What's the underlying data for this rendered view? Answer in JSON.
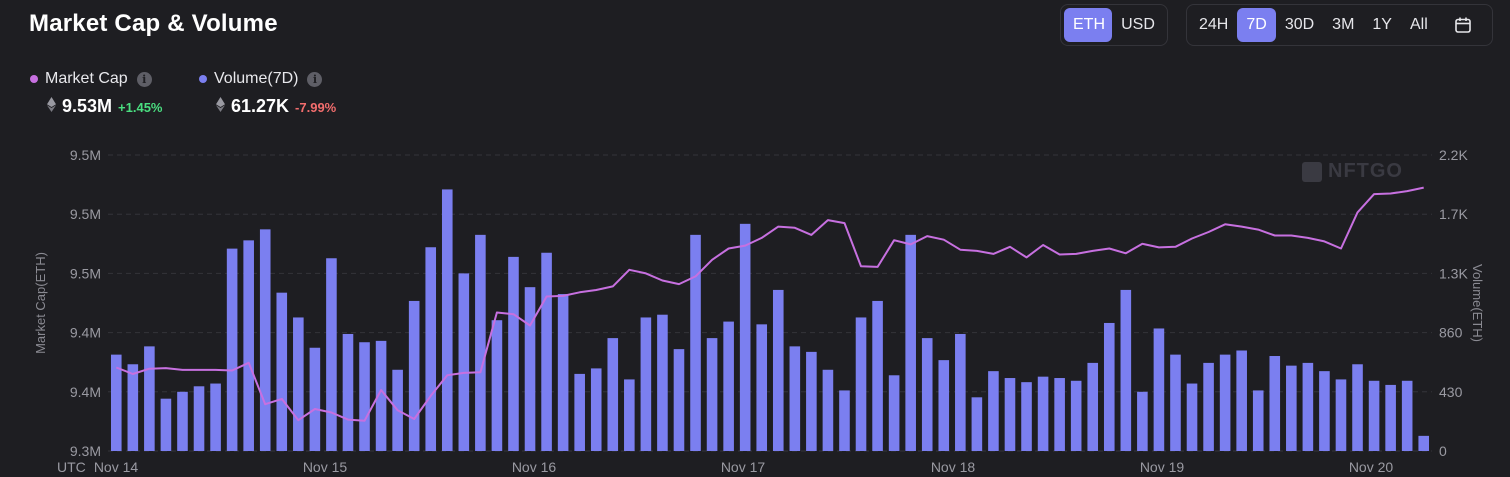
{
  "title": "Market Cap & Volume",
  "currency_toggle": {
    "options": [
      "ETH",
      "USD"
    ],
    "selected": "ETH"
  },
  "range_toggle": {
    "options": [
      "24H",
      "7D",
      "30D",
      "3M",
      "1Y",
      "All"
    ],
    "selected": "7D"
  },
  "legend": {
    "market_cap": {
      "label": "Market Cap",
      "value": "9.53M",
      "change": "+1.45%",
      "change_color": "#4ade80",
      "color": "#c770e0"
    },
    "volume": {
      "label": "Volume(7D)",
      "value": "61.27K",
      "change": "-7.99%",
      "change_color": "#f26d6d",
      "color": "#7b7ff0"
    }
  },
  "watermark": "NFTGO",
  "colors": {
    "background": "#1e1e22",
    "accent": "#7b7ff0",
    "grid": "#34343a"
  },
  "chart_data": {
    "type": "bar",
    "xlabel": "UTC",
    "x_ticks": [
      "Nov 14",
      "Nov 15",
      "Nov 16",
      "Nov 17",
      "Nov 18",
      "Nov 19",
      "Nov 20"
    ],
    "y_left": {
      "label": "Market Cap(ETH)",
      "ticks": [
        "9.3M",
        "9.4M",
        "9.4M",
        "9.5M",
        "9.5M",
        "9.5M"
      ],
      "range": [
        0,
        5
      ]
    },
    "y_right": {
      "label": "Volume(ETH)",
      "ticks": [
        "0",
        "430",
        "860",
        "1.3K",
        "1.7K",
        "2.2K"
      ],
      "range": [
        0,
        2150
      ]
    },
    "series": [
      {
        "name": "Volume(7D)",
        "type": "bar",
        "axis": "right",
        "color": "#7b7ff0",
        "values": [
          700,
          630,
          760,
          380,
          430,
          470,
          490,
          1470,
          1530,
          1610,
          1150,
          970,
          750,
          1400,
          850,
          790,
          800,
          590,
          1090,
          1480,
          1900,
          1290,
          1570,
          950,
          1410,
          1190,
          1440,
          1140,
          560,
          600,
          820,
          520,
          970,
          990,
          740,
          1570,
          820,
          940,
          1650,
          920,
          1170,
          760,
          720,
          590,
          440,
          970,
          1090,
          550,
          1570,
          820,
          660,
          850,
          390,
          580,
          530,
          500,
          540,
          530,
          510,
          640,
          930,
          1170,
          430,
          890,
          700,
          490,
          640,
          700,
          730,
          440,
          690,
          620,
          640,
          580,
          520,
          630,
          510,
          480,
          510,
          110
        ]
      },
      {
        "name": "Market Cap",
        "type": "line",
        "axis": "left",
        "color": "#c770e0",
        "values": [
          1.41,
          1.3,
          1.39,
          1.4,
          1.37,
          1.37,
          1.37,
          1.36,
          1.49,
          0.79,
          0.88,
          0.52,
          0.71,
          0.65,
          0.53,
          0.51,
          1.03,
          0.69,
          0.54,
          0.93,
          1.28,
          1.32,
          1.33,
          2.34,
          2.31,
          2.12,
          2.61,
          2.62,
          2.68,
          2.72,
          2.78,
          3.06,
          3.0,
          2.88,
          2.82,
          2.95,
          3.23,
          3.42,
          3.47,
          3.6,
          3.79,
          3.77,
          3.65,
          3.9,
          3.85,
          3.12,
          3.11,
          3.56,
          3.49,
          3.63,
          3.57,
          3.4,
          3.38,
          3.33,
          3.45,
          3.27,
          3.48,
          3.32,
          3.33,
          3.38,
          3.42,
          3.34,
          3.5,
          3.44,
          3.45,
          3.59,
          3.7,
          3.83,
          3.79,
          3.74,
          3.64,
          3.64,
          3.6,
          3.54,
          3.42,
          4.03,
          4.34,
          4.35,
          4.39,
          4.45
        ]
      }
    ]
  }
}
